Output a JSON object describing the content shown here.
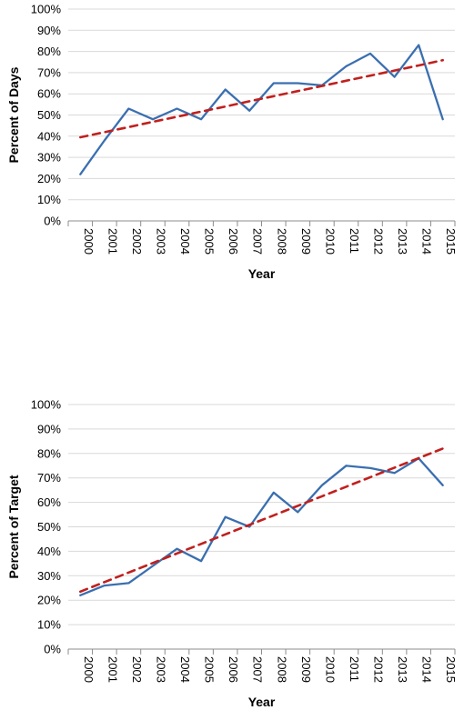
{
  "chart_data": [
    {
      "type": "line",
      "title": "",
      "xlabel": "Year",
      "ylabel": "Percent of Days",
      "categories": [
        "2000",
        "2001",
        "2002",
        "2003",
        "2004",
        "2005",
        "2006",
        "2007",
        "2008",
        "2009",
        "2010",
        "2011",
        "2012",
        "2013",
        "2014",
        "2015"
      ],
      "yticks": [
        "0%",
        "10%",
        "20%",
        "30%",
        "40%",
        "50%",
        "60%",
        "70%",
        "80%",
        "90%",
        "100%"
      ],
      "ylim": [
        0,
        100
      ],
      "grid": true,
      "legend": "none",
      "series": [
        {
          "values": [
            22,
            38,
            53,
            48,
            53,
            48,
            62,
            52,
            65,
            65,
            64,
            73,
            79,
            68,
            83,
            48
          ],
          "color": "#3a6fb0",
          "style": "solid"
        },
        {
          "values": [
            39.5,
            41.9,
            44.3,
            46.8,
            49.2,
            51.6,
            54.0,
            56.5,
            58.9,
            61.3,
            63.7,
            66.2,
            68.6,
            71.0,
            73.4,
            75.9
          ],
          "color": "#c0201e",
          "style": "dashed"
        }
      ]
    },
    {
      "type": "line",
      "title": "",
      "xlabel": "Year",
      "ylabel": "Percent of Target",
      "categories": [
        "2000",
        "2001",
        "2002",
        "2003",
        "2004",
        "2005",
        "2006",
        "2007",
        "2008",
        "2009",
        "2010",
        "2011",
        "2012",
        "2013",
        "2014",
        "2015"
      ],
      "yticks": [
        "0%",
        "10%",
        "20%",
        "30%",
        "40%",
        "50%",
        "60%",
        "70%",
        "80%",
        "90%",
        "100%"
      ],
      "ylim": [
        0,
        100
      ],
      "grid": true,
      "legend": "none",
      "series": [
        {
          "values": [
            22,
            26,
            27,
            34,
            41,
            36,
            54,
            50,
            64,
            56,
            67,
            75,
            74,
            72,
            78,
            67
          ],
          "color": "#3a6fb0",
          "style": "solid"
        },
        {
          "values": [
            23.5,
            27.4,
            31.3,
            35.2,
            39.1,
            43.0,
            46.9,
            50.8,
            54.7,
            58.6,
            62.5,
            66.4,
            70.3,
            74.2,
            78.1,
            82.0
          ],
          "color": "#c0201e",
          "style": "dashed"
        }
      ]
    }
  ]
}
